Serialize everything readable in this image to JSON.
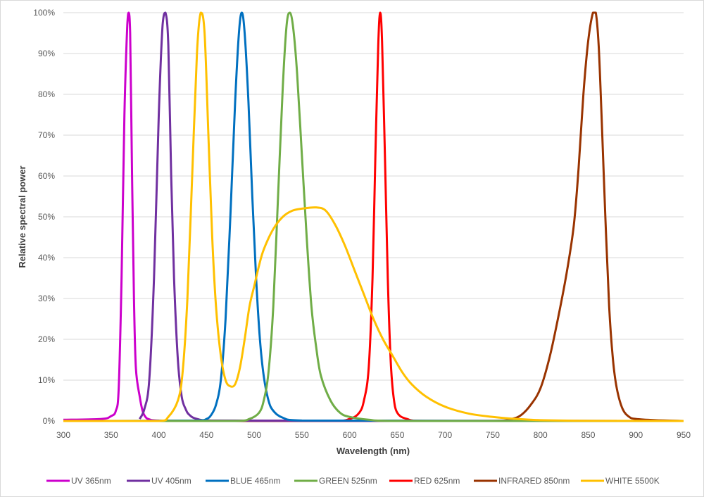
{
  "chart_data": {
    "type": "line",
    "title": "",
    "xlabel": "Wavelength (nm)",
    "ylabel": "Relative spectral power",
    "xlim": [
      300,
      950
    ],
    "ylim": [
      0,
      100
    ],
    "xticks": [
      "300",
      "350",
      "400",
      "450",
      "500",
      "550",
      "600",
      "650",
      "700",
      "750",
      "800",
      "850",
      "900",
      "950"
    ],
    "yticks": [
      "0%",
      "10%",
      "20%",
      "30%",
      "40%",
      "50%",
      "60%",
      "70%",
      "80%",
      "90%",
      "100%"
    ],
    "grid": "horizontal",
    "legend_position": "bottom",
    "series": [
      {
        "name": "UV 365nm",
        "color": "#CC00CC",
        "points": [
          [
            300,
            0.3
          ],
          [
            340,
            0.5
          ],
          [
            350,
            1.2
          ],
          [
            355,
            2.5
          ],
          [
            358,
            8
          ],
          [
            361,
            35
          ],
          [
            364,
            75
          ],
          [
            367,
            97
          ],
          [
            368.5,
            100
          ],
          [
            370,
            95
          ],
          [
            372,
            60
          ],
          [
            374,
            30
          ],
          [
            376,
            13
          ],
          [
            380,
            6
          ],
          [
            383,
            2.5
          ],
          [
            386,
            1
          ],
          [
            390,
            0.4
          ],
          [
            400,
            0.1
          ],
          [
            950,
            0
          ]
        ]
      },
      {
        "name": "UV 405nm",
        "color": "#7030A0",
        "points": [
          [
            380,
            0.5
          ],
          [
            385,
            3
          ],
          [
            390,
            10
          ],
          [
            395,
            35
          ],
          [
            400,
            75
          ],
          [
            404,
            97
          ],
          [
            407,
            100
          ],
          [
            410,
            92
          ],
          [
            413,
            60
          ],
          [
            416,
            35
          ],
          [
            420,
            15
          ],
          [
            424,
            6
          ],
          [
            428,
            3
          ],
          [
            432,
            1.5
          ],
          [
            440,
            0.5
          ],
          [
            460,
            0.1
          ],
          [
            950,
            0
          ]
        ]
      },
      {
        "name": "BLUE 465nm",
        "color": "#0070C0",
        "points": [
          [
            300,
            0
          ],
          [
            440,
            0.1
          ],
          [
            450,
            0.5
          ],
          [
            455,
            1.5
          ],
          [
            460,
            4
          ],
          [
            465,
            10
          ],
          [
            470,
            25
          ],
          [
            475,
            50
          ],
          [
            480,
            78
          ],
          [
            484,
            95
          ],
          [
            487,
            100
          ],
          [
            490,
            95
          ],
          [
            494,
            78
          ],
          [
            498,
            55
          ],
          [
            502,
            35
          ],
          [
            506,
            20
          ],
          [
            510,
            11
          ],
          [
            515,
            5
          ],
          [
            520,
            2.5
          ],
          [
            530,
            0.8
          ],
          [
            550,
            0.1
          ],
          [
            950,
            0
          ]
        ]
      },
      {
        "name": "GREEN 525nm",
        "color": "#70AD47",
        "points": [
          [
            300,
            0
          ],
          [
            480,
            0
          ],
          [
            495,
            0.5
          ],
          [
            505,
            2
          ],
          [
            510,
            5
          ],
          [
            515,
            12
          ],
          [
            520,
            28
          ],
          [
            525,
            55
          ],
          [
            530,
            82
          ],
          [
            534,
            97
          ],
          [
            537.5,
            100
          ],
          [
            541,
            96
          ],
          [
            545,
            85
          ],
          [
            550,
            65
          ],
          [
            555,
            45
          ],
          [
            560,
            28
          ],
          [
            565,
            18
          ],
          [
            570,
            11
          ],
          [
            580,
            5
          ],
          [
            590,
            2
          ],
          [
            600,
            1
          ],
          [
            620,
            0.3
          ],
          [
            650,
            0
          ],
          [
            950,
            0
          ]
        ]
      },
      {
        "name": "RED 625nm",
        "color": "#FF0000",
        "points": [
          [
            300,
            0
          ],
          [
            580,
            0
          ],
          [
            600,
            0.5
          ],
          [
            610,
            2
          ],
          [
            615,
            5
          ],
          [
            620,
            13
          ],
          [
            624,
            35
          ],
          [
            627,
            65
          ],
          [
            630,
            92
          ],
          [
            632,
            100
          ],
          [
            634,
            93
          ],
          [
            637,
            65
          ],
          [
            640,
            35
          ],
          [
            643,
            15
          ],
          [
            646,
            6
          ],
          [
            650,
            2
          ],
          [
            660,
            0.5
          ],
          [
            680,
            0
          ],
          [
            950,
            0
          ]
        ]
      },
      {
        "name": "INFRARED 850nm",
        "color": "#993300",
        "points": [
          [
            300,
            0
          ],
          [
            750,
            0
          ],
          [
            770,
            0.5
          ],
          [
            780,
            1.5
          ],
          [
            790,
            4
          ],
          [
            800,
            8
          ],
          [
            810,
            16
          ],
          [
            820,
            27
          ],
          [
            828,
            37
          ],
          [
            835,
            48
          ],
          [
            840,
            62
          ],
          [
            845,
            80
          ],
          [
            850,
            93
          ],
          [
            855,
            100
          ],
          [
            858,
            100
          ],
          [
            861,
            92
          ],
          [
            864,
            75
          ],
          [
            868,
            50
          ],
          [
            872,
            28
          ],
          [
            876,
            15
          ],
          [
            880,
            8
          ],
          [
            886,
            3
          ],
          [
            893,
            1
          ],
          [
            900,
            0.5
          ],
          [
            920,
            0.2
          ],
          [
            950,
            0
          ]
        ]
      },
      {
        "name": "WHITE 5500K",
        "color": "#FFC000",
        "points": [
          [
            300,
            0
          ],
          [
            400,
            0
          ],
          [
            410,
            1
          ],
          [
            420,
            5
          ],
          [
            425,
            12
          ],
          [
            430,
            30
          ],
          [
            435,
            60
          ],
          [
            440,
            90
          ],
          [
            444,
            100
          ],
          [
            448,
            95
          ],
          [
            452,
            70
          ],
          [
            456,
            45
          ],
          [
            460,
            28
          ],
          [
            465,
            16
          ],
          [
            470,
            10
          ],
          [
            475,
            8.5
          ],
          [
            480,
            9
          ],
          [
            485,
            13
          ],
          [
            490,
            20
          ],
          [
            495,
            28
          ],
          [
            500,
            33
          ],
          [
            505,
            38
          ],
          [
            510,
            42
          ],
          [
            520,
            47
          ],
          [
            530,
            50
          ],
          [
            540,
            51.5
          ],
          [
            550,
            52
          ],
          [
            565,
            52.3
          ],
          [
            575,
            51.5
          ],
          [
            585,
            48
          ],
          [
            595,
            43
          ],
          [
            605,
            37
          ],
          [
            615,
            31
          ],
          [
            625,
            25
          ],
          [
            635,
            20
          ],
          [
            645,
            16
          ],
          [
            655,
            12
          ],
          [
            665,
            9
          ],
          [
            680,
            6
          ],
          [
            700,
            3.5
          ],
          [
            725,
            1.8
          ],
          [
            750,
            1
          ],
          [
            775,
            0.5
          ],
          [
            800,
            0.2
          ],
          [
            850,
            0.05
          ],
          [
            950,
            0
          ]
        ]
      }
    ]
  }
}
